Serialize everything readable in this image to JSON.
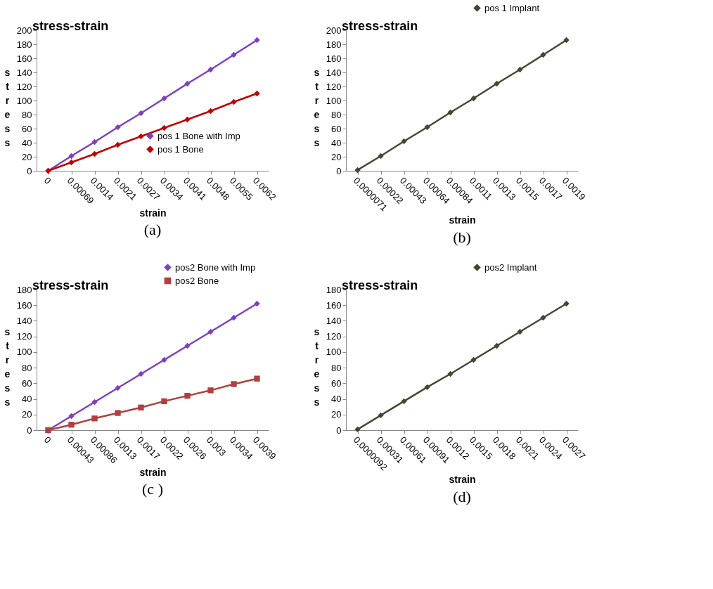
{
  "chart_data": [
    {
      "type": "line",
      "title": "stress-strain",
      "xlabel": "strain",
      "ylabel": "stress",
      "categories": [
        "0",
        "0.00069",
        "0.0014",
        "0.0021",
        "0.0027",
        "0.0034",
        "0.0041",
        "0.0048",
        "0.0055",
        "0.0062"
      ],
      "series": [
        {
          "name": "pos 1 Bone with Imp",
          "color": "#7f3fbf",
          "values": [
            0,
            21,
            41,
            62,
            82,
            103,
            124,
            144,
            165,
            186
          ]
        },
        {
          "name": "pos 1 Bone",
          "color": "#c00000",
          "values": [
            0,
            12,
            24,
            37,
            49,
            61,
            73,
            85,
            98,
            110
          ]
        }
      ],
      "ylim": [
        0,
        200
      ],
      "yticks": [
        0,
        20,
        40,
        60,
        80,
        100,
        120,
        140,
        160,
        180,
        200
      ],
      "grid": false,
      "legend": "bottom right",
      "marker": "diamond",
      "annotations": [
        "(a)"
      ]
    },
    {
      "type": "line",
      "title": "stress-strain",
      "xlabel": "strain",
      "ylabel": "stress",
      "categories": [
        "0.0000071",
        "0.00022",
        "0.00043",
        "0.00064",
        "0.00084",
        "0.0011",
        "0.0013",
        "0.0015",
        "0.0017",
        "0.0019"
      ],
      "series": [
        {
          "name": "pos 1 Implant",
          "color": "#4a4530",
          "values": [
            1,
            21,
            42,
            62,
            83,
            103,
            124,
            144,
            165,
            186
          ]
        }
      ],
      "ylim": [
        0,
        200
      ],
      "yticks": [
        0,
        20,
        40,
        60,
        80,
        100,
        120,
        140,
        160,
        180,
        200
      ],
      "grid": false,
      "legend": "top right",
      "marker": "diamond",
      "annotations": [
        "(b)"
      ]
    },
    {
      "type": "line",
      "title": "stress-strain",
      "xlabel": "strain",
      "ylabel": "stress",
      "categories": [
        "0",
        "0.00043",
        "0.00086",
        "0.0013",
        "0.0017",
        "0.0022",
        "0.0026",
        "0.003",
        "0.0034",
        "0.0039"
      ],
      "series": [
        {
          "name": "pos2 Bone with Imp",
          "color": "#7f3fbf",
          "values": [
            0,
            18,
            36,
            54,
            72,
            90,
            108,
            126,
            144,
            162
          ]
        },
        {
          "name": "pos2 Bone",
          "color": "#b0403d",
          "marker": "square",
          "values": [
            0,
            7,
            15,
            22,
            29,
            37,
            44,
            51,
            59,
            66
          ]
        }
      ],
      "ylim": [
        0,
        180
      ],
      "yticks": [
        0,
        20,
        40,
        60,
        80,
        100,
        120,
        140,
        160,
        180
      ],
      "grid": false,
      "legend": "top right",
      "marker": "diamond",
      "annotations": [
        "(c )"
      ]
    },
    {
      "type": "line",
      "title": "stress-strain",
      "xlabel": "strain",
      "ylabel": "stress",
      "categories": [
        "0.0000092",
        "0.00031",
        "0.00061",
        "0.00091",
        "0.0012",
        "0.0015",
        "0.0018",
        "0.0021",
        "0.0024",
        "0.0027"
      ],
      "series": [
        {
          "name": "pos2 Implant",
          "color": "#4a4530",
          "values": [
            1,
            19,
            37,
            55,
            72,
            90,
            108,
            126,
            144,
            162
          ]
        }
      ],
      "ylim": [
        0,
        180
      ],
      "yticks": [
        0,
        20,
        40,
        60,
        80,
        100,
        120,
        140,
        160,
        180
      ],
      "grid": false,
      "legend": "top right",
      "marker": "diamond",
      "annotations": [
        "(d)"
      ]
    }
  ]
}
